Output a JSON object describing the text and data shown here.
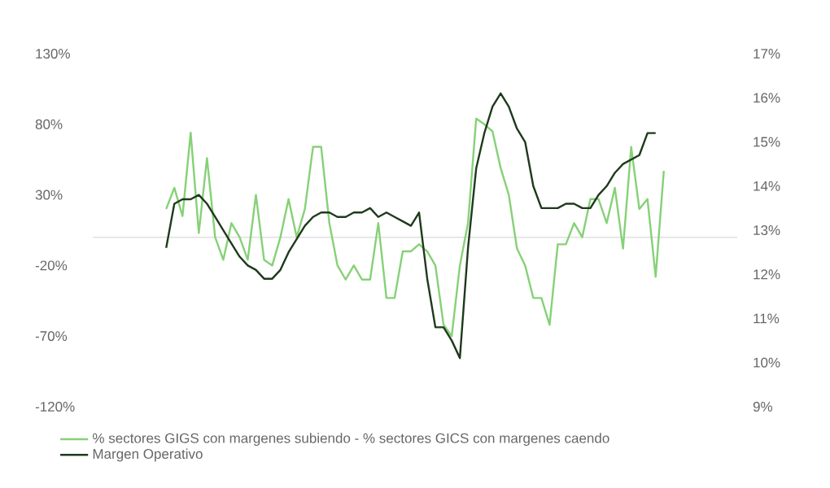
{
  "chart_data": {
    "type": "line",
    "categories": [
      null,
      null,
      null,
      null,
      null,
      null,
      null,
      null,
      null,
      null,
      null,
      null,
      null,
      null,
      null,
      null,
      null,
      null,
      null,
      null,
      null,
      null,
      null,
      null,
      null,
      null,
      null,
      null,
      null,
      null,
      null,
      null,
      null,
      null,
      null,
      null,
      null,
      null,
      null,
      null,
      null,
      null,
      null,
      null,
      null,
      null,
      null,
      null,
      null,
      null,
      null,
      null,
      null,
      null,
      null,
      null,
      null,
      null,
      null,
      null,
      null,
      null,
      null,
      null,
      null,
      null,
      null,
      null,
      null,
      null,
      null,
      null,
      null,
      null,
      null,
      null,
      null,
      null,
      null,
      null
    ],
    "series": [
      {
        "name": "% sectores GIGS con margenes subiendo - % sectores GICS con margenes caendo",
        "color": "#86d177",
        "values": [
          null,
          null,
          null,
          null,
          null,
          null,
          null,
          null,
          null,
          20,
          35,
          15,
          74,
          3,
          56,
          0,
          -16,
          10,
          0,
          -16,
          30,
          -16,
          -20,
          0,
          27,
          0,
          20,
          64,
          64,
          10,
          -20,
          -30,
          -20,
          -30,
          -30,
          10,
          -43,
          -43,
          -10,
          -10,
          -5,
          -10,
          -20,
          -62,
          -70,
          -20,
          10,
          84,
          80,
          75,
          49,
          30,
          -8,
          -20,
          -43,
          -43,
          -62,
          -5,
          -5,
          10,
          0,
          27,
          27,
          10,
          35,
          -8,
          64,
          20,
          27,
          -28,
          47,
          null,
          null,
          null,
          null,
          null,
          null,
          null,
          null,
          null
        ]
      },
      {
        "name": "Margen Operativo",
        "color": "#1e3a1c",
        "axis": "y2",
        "values": [
          null,
          null,
          null,
          null,
          null,
          null,
          null,
          null,
          null,
          12.6,
          13.6,
          13.7,
          13.7,
          13.8,
          13.6,
          13.3,
          13.0,
          12.7,
          12.4,
          12.2,
          12.1,
          11.9,
          11.9,
          12.1,
          12.5,
          12.8,
          13.1,
          13.3,
          13.4,
          13.4,
          13.3,
          13.3,
          13.4,
          13.4,
          13.5,
          13.3,
          13.4,
          13.3,
          13.2,
          13.1,
          13.4,
          11.9,
          10.8,
          10.8,
          10.5,
          10.1,
          12.6,
          14.4,
          15.2,
          15.8,
          16.1,
          15.8,
          15.3,
          15.0,
          14.0,
          13.5,
          13.5,
          13.5,
          13.6,
          13.6,
          13.5,
          13.5,
          13.8,
          14.0,
          14.3,
          14.5,
          14.6,
          14.7,
          15.2,
          15.2,
          null,
          null,
          null,
          null,
          null,
          null,
          null,
          null,
          null,
          null
        ]
      }
    ],
    "ylim": [
      -120,
      130
    ],
    "yticks": [
      {
        "value": -120,
        "label": "-120%"
      },
      {
        "value": -70,
        "label": "-70%"
      },
      {
        "value": -20,
        "label": "-20%"
      },
      {
        "value": 30,
        "label": "30%"
      },
      {
        "value": 80,
        "label": "80%"
      },
      {
        "value": 130,
        "label": "130%"
      }
    ],
    "y2lim": [
      9,
      17
    ],
    "y2ticks": [
      {
        "value": 9,
        "label": "9%"
      },
      {
        "value": 10,
        "label": "10%"
      },
      {
        "value": 11,
        "label": "11%"
      },
      {
        "value": 12,
        "label": "12%"
      },
      {
        "value": 13,
        "label": "13%"
      },
      {
        "value": 14,
        "label": "14%"
      },
      {
        "value": 15,
        "label": "15%"
      },
      {
        "value": 16,
        "label": "16%"
      },
      {
        "value": 17,
        "label": "17%"
      }
    ],
    "legend": "bottom",
    "grid": false
  }
}
